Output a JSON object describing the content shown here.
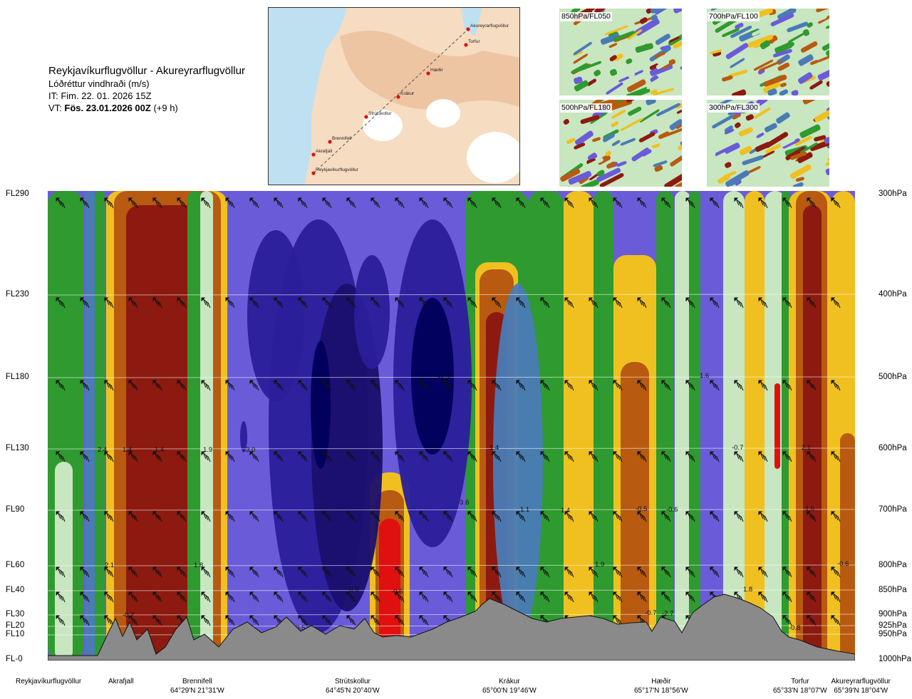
{
  "header": {
    "route": "Reykjavíkurflugvöllur - Akureyrarflugvöllur",
    "parameter": "Lóðréttur vindhraði (m/s)",
    "issue_time": "IT: Fim. 22. 01. 2026 15Z",
    "valid_prefix": "VT: ",
    "valid_time": "Fös. 23.01.2026 00Z",
    "lead_time": " (+9 h)"
  },
  "map": {
    "places": [
      "Akureyrarflugvöllur",
      "Torfur",
      "Hæðir",
      "Krákur",
      "Strútskollur",
      "Brennifell",
      "Akrafjall",
      "Reykjavíkurflugvöllur"
    ]
  },
  "panels": [
    "850hPa/FL050",
    "700hPa/FL100",
    "500hPa/FL180",
    "300hPa/FL300"
  ],
  "colors": {
    "strong_down": "#1a0f6e",
    "down": "#6a5bd8",
    "weak_down": "#4a7bb7",
    "neutral": "#c8e6c0",
    "green": "#2f9a2f",
    "weak_up": "#f0c020",
    "up": "#b85a10",
    "strong_up": "#8c1a10",
    "max_up": "#e01010",
    "terrain": "#8a8a8a"
  },
  "chart_data": {
    "type": "heatmap",
    "title": "Lóðréttur vindhraði (m/s)",
    "x_stations": [
      "Reykjavíkurflugvöllur",
      "Akrafjall",
      "Brennifell",
      "Strútskollur",
      "Krákur",
      "Hæðir",
      "Torfur",
      "Akureyrarflugvöllur"
    ],
    "y_levels_left": [
      "FL290",
      "FL230",
      "FL180",
      "FL130",
      "FL90",
      "FL60",
      "FL40",
      "FL30",
      "FL20",
      "FL10",
      "FL-0"
    ],
    "y_levels_right": [
      "300hPa",
      "400hPa",
      "500hPa",
      "600hPa",
      "700hPa",
      "800hPa",
      "850hPa",
      "900hPa",
      "925hPa",
      "950hPa",
      "1000hPa"
    ],
    "coordinates": [
      {
        "station": "Brennifell",
        "text": "64°29'N 21°31'W"
      },
      {
        "station": "Strútskollur",
        "text": "64°45'N 20°40'W"
      },
      {
        "station": "Krákur",
        "text": "65°00'N 19°46'W"
      },
      {
        "station": "Hæðir",
        "text": "65°17'N 18°56'W"
      },
      {
        "station": "Torfur",
        "text": "65°33'N 18°07'W"
      },
      {
        "station": "Akureyrarflugvöllur",
        "text": "65°39'N 18°04'W"
      }
    ],
    "contour_labels": [
      "2.4",
      "1.4",
      "1.4",
      "1.9",
      "-3.0",
      "1.4",
      "1.1",
      "1.4",
      "-0.5",
      "-0.6",
      "1.6",
      "-0.7",
      "2.1",
      "1.6",
      "2.1",
      "1.8",
      "1.9",
      "-0.6",
      "-0.7",
      "-0.5",
      "-0.6",
      "1.1",
      "-0.7",
      "-2.7",
      "1.8",
      "-0.8",
      "-0.6",
      "-3.6",
      "-2.3"
    ],
    "legend": "none",
    "grid": "pressure lines"
  }
}
